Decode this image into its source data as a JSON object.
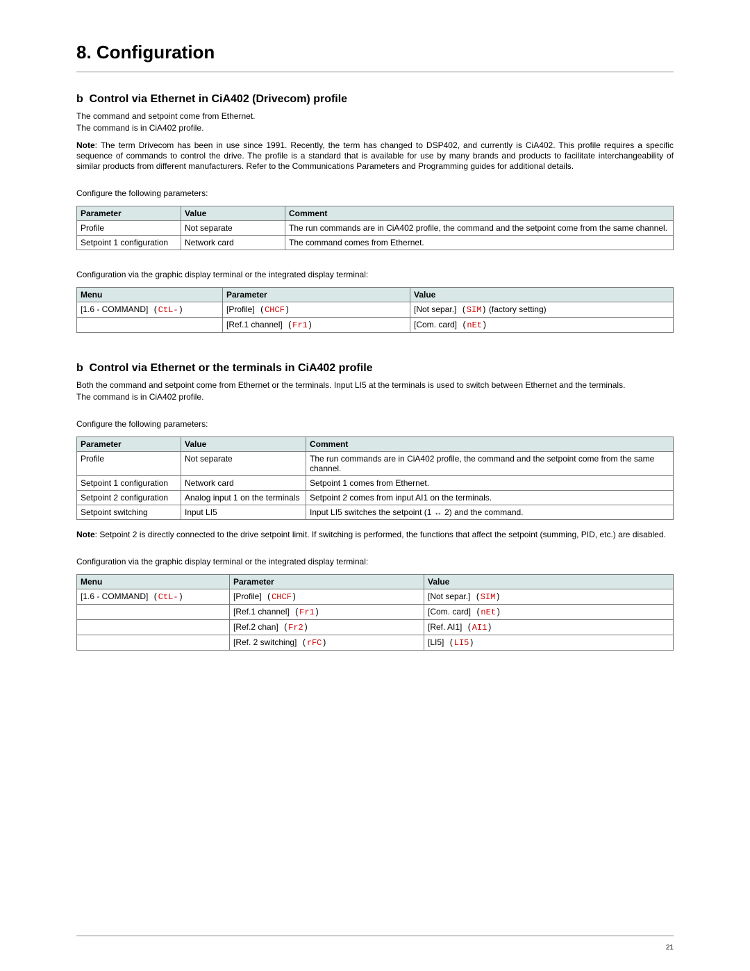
{
  "chapter_title": "8. Configuration",
  "page_number": "21",
  "section1": {
    "marker": "b",
    "title": "Control via Ethernet in CiA402 (Drivecom) profile",
    "intro1": "The command and setpoint come from Ethernet.",
    "intro2": "The command is in CiA402 profile.",
    "note_label": "Note",
    "note_text": ": The term Drivecom has been in use since 1991. Recently, the term has changed to DSP402, and currently is CiA402. This profile requires a specific sequence of commands to control the drive. The profile is a standard that is available for use by many brands and products to facilitate interchangeability of similar products from different manufacturers. Refer to the Communications Parameters and Programming guides for additional details.",
    "configure_line": "Configure the following parameters:",
    "table1": {
      "headers": [
        "Parameter",
        "Value",
        "Comment"
      ],
      "col_widths": [
        "150px",
        "150px",
        "auto"
      ],
      "rows": [
        [
          "Profile",
          "Not separate",
          "The run commands are in CiA402 profile, the command and the setpoint come from the same channel."
        ],
        [
          "Setpoint 1 configuration",
          "Network card",
          "The command comes from Ethernet."
        ]
      ]
    },
    "config_via_line": "Configuration via the graphic display terminal or the integrated display terminal:",
    "table2": {
      "headers": [
        "Menu",
        "Parameter",
        "Value"
      ],
      "col_widths": [
        "210px",
        "270px",
        "auto"
      ],
      "menu_bracket": "[1.6 - COMMAND]",
      "menu_code_open": " (",
      "menu_code": "CtL-",
      "menu_code_close": ")",
      "rows": [
        {
          "param_bracket": "[Profile]",
          "param_code": "CHCF",
          "value_bracket": "[Not separ.]",
          "value_code": "SIM",
          "value_suffix": " (factory setting)"
        },
        {
          "param_bracket": "[Ref.1 channel]",
          "param_code": "Fr1",
          "value_bracket": "[Com. card]",
          "value_code": "nEt",
          "value_suffix": ""
        }
      ]
    }
  },
  "section2": {
    "marker": "b",
    "title": "Control via Ethernet or the terminals in CiA402 profile",
    "intro1": "Both the command and setpoint come from Ethernet or the terminals. Input LI5 at the terminals is used to switch between Ethernet and the terminals.",
    "intro2": "The command is in CiA402 profile.",
    "configure_line": "Configure the following parameters:",
    "table1": {
      "headers": [
        "Parameter",
        "Value",
        "Comment"
      ],
      "col_widths": [
        "150px",
        "180px",
        "auto"
      ],
      "rows": [
        [
          "Profile",
          "Not separate",
          "The run commands are in CiA402 profile, the command and the setpoint come from the same channel."
        ],
        [
          "Setpoint 1 configuration",
          "Network card",
          "Setpoint 1 comes from Ethernet."
        ],
        [
          "Setpoint 2 configuration",
          "Analog input 1 on the terminals",
          "Setpoint 2 comes from input AI1 on the terminals."
        ],
        [
          "Setpoint switching",
          "Input LI5",
          "__ARROWROW__"
        ]
      ],
      "arrow_prefix": "Input LI5 switches the setpoint (1 ",
      "arrow": "↔",
      "arrow_suffix": " 2) and the command."
    },
    "note_label": "Note",
    "note_text": ": Setpoint 2 is directly connected to the drive setpoint limit. If switching is performed, the functions that affect the setpoint (summing, PID, etc.) are disabled.",
    "config_via_line": "Configuration via the graphic display terminal or the integrated display terminal:",
    "table2": {
      "headers": [
        "Menu",
        "Parameter",
        "Value"
      ],
      "col_widths": [
        "220px",
        "280px",
        "auto"
      ],
      "menu_bracket": "[1.6 - COMMAND]",
      "menu_code_open": " (",
      "menu_code": "CtL-",
      "menu_code_close": ")",
      "rows": [
        {
          "param_bracket": "[Profile]",
          "param_code": "CHCF",
          "value_bracket": "[Not separ.]",
          "value_code": "SIM",
          "value_suffix": ""
        },
        {
          "param_bracket": "[Ref.1 channel]",
          "param_code": "Fr1",
          "value_bracket": "[Com. card]",
          "value_code": "nEt",
          "value_suffix": ""
        },
        {
          "param_bracket": "[Ref.2 chan]",
          "param_code": "Fr2",
          "value_bracket": "[Ref. AI1]",
          "value_code": "AI1",
          "value_suffix": ""
        },
        {
          "param_bracket": "[Ref. 2 switching]",
          "param_code": "rFC",
          "value_bracket": "[LI5]",
          "value_code": "LI5",
          "value_suffix": ""
        }
      ]
    }
  }
}
